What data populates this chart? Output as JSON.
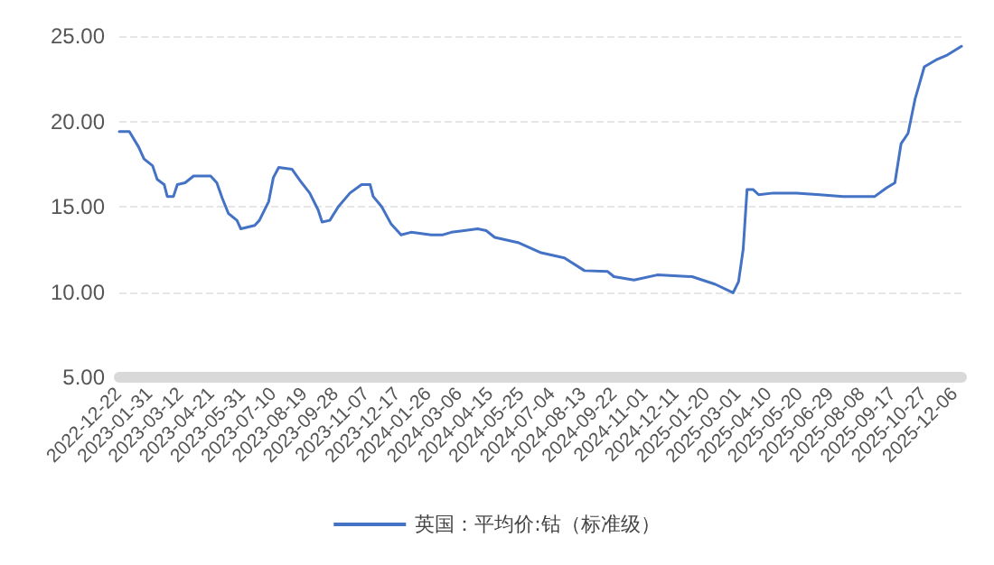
{
  "chart_data": {
    "type": "line",
    "xlim": [
      "2022-12-22",
      "2025-12-14"
    ],
    "xticks": [
      "2022-12-22",
      "2023-01-31",
      "2023-03-12",
      "2023-04-21",
      "2023-05-31",
      "2023-07-10",
      "2023-08-19",
      "2023-09-28",
      "2023-11-07",
      "2023-12-17",
      "2024-01-26",
      "2024-03-06",
      "2024-04-15",
      "2024-05-25",
      "2024-07-04",
      "2024-08-13",
      "2024-09-22",
      "2024-11-01",
      "2024-12-11",
      "2025-01-20",
      "2025-03-01",
      "2025-04-10",
      "2025-05-20",
      "2025-06-29",
      "2025-08-08",
      "2025-09-17",
      "2025-10-27",
      "2025-12-06"
    ],
    "ylim": [
      5,
      25
    ],
    "yticks": [
      {
        "value": 5,
        "label": "5.00"
      },
      {
        "value": 10,
        "label": "10.00"
      },
      {
        "value": 15,
        "label": "15.00"
      },
      {
        "value": 20,
        "label": "20.00"
      },
      {
        "value": 25,
        "label": "25.00"
      }
    ],
    "grid": "y",
    "legend": "bottom",
    "marker": "none",
    "line_style": "solid",
    "series": [
      {
        "name": "英国：平均价:钴（标准级）",
        "color": "#4472c4",
        "x": [
          "2022-12-22",
          "2023-01-04",
          "2023-01-16",
          "2023-01-23",
          "2023-02-03",
          "2023-02-09",
          "2023-02-18",
          "2023-02-22",
          "2023-03-02",
          "2023-03-07",
          "2023-03-17",
          "2023-03-28",
          "2023-04-19",
          "2023-04-27",
          "2023-05-04",
          "2023-05-12",
          "2023-05-23",
          "2023-05-28",
          "2023-06-15",
          "2023-06-21",
          "2023-07-03",
          "2023-07-09",
          "2023-07-16",
          "2023-08-02",
          "2023-08-13",
          "2023-08-25",
          "2023-09-05",
          "2023-09-10",
          "2023-09-20",
          "2023-10-01",
          "2023-10-16",
          "2023-10-31",
          "2023-11-11",
          "2023-11-15",
          "2023-11-26",
          "2023-12-08",
          "2023-12-21",
          "2024-01-03",
          "2024-01-29",
          "2024-02-13",
          "2024-02-24",
          "2024-03-29",
          "2024-04-09",
          "2024-04-20",
          "2024-05-20",
          "2024-06-19",
          "2024-07-19",
          "2024-08-14",
          "2024-09-13",
          "2024-09-21",
          "2024-10-17",
          "2024-11-16",
          "2024-12-31",
          "2025-01-30",
          "2025-02-22",
          "2025-03-01",
          "2025-03-07",
          "2025-03-12",
          "2025-03-20",
          "2025-03-27",
          "2025-04-15",
          "2025-05-15",
          "2025-06-14",
          "2025-07-14",
          "2025-07-29",
          "2025-08-24",
          "2025-09-08",
          "2025-09-19",
          "2025-09-27",
          "2025-10-06",
          "2025-10-15",
          "2025-10-27",
          "2025-11-11",
          "2025-11-26",
          "2025-12-14"
        ],
        "values": [
          19.4,
          19.4,
          18.5,
          17.8,
          17.4,
          16.6,
          16.3,
          15.6,
          15.6,
          16.3,
          16.4,
          16.8,
          16.8,
          16.4,
          15.5,
          14.6,
          14.2,
          13.7,
          13.9,
          14.2,
          15.3,
          16.7,
          17.3,
          17.2,
          16.5,
          15.8,
          14.8,
          14.1,
          14.2,
          15.0,
          15.8,
          16.3,
          16.3,
          15.6,
          15.0,
          14.0,
          13.35,
          13.5,
          13.35,
          13.35,
          13.5,
          13.7,
          13.6,
          13.2,
          12.9,
          12.3,
          12.0,
          11.25,
          11.2,
          10.9,
          10.7,
          11.0,
          10.9,
          10.45,
          9.95,
          10.6,
          12.5,
          16.0,
          16.0,
          15.7,
          15.8,
          15.8,
          15.7,
          15.6,
          15.6,
          15.6,
          16.1,
          16.4,
          18.7,
          19.3,
          21.3,
          23.2,
          23.6,
          23.9,
          24.4
        ]
      }
    ]
  }
}
